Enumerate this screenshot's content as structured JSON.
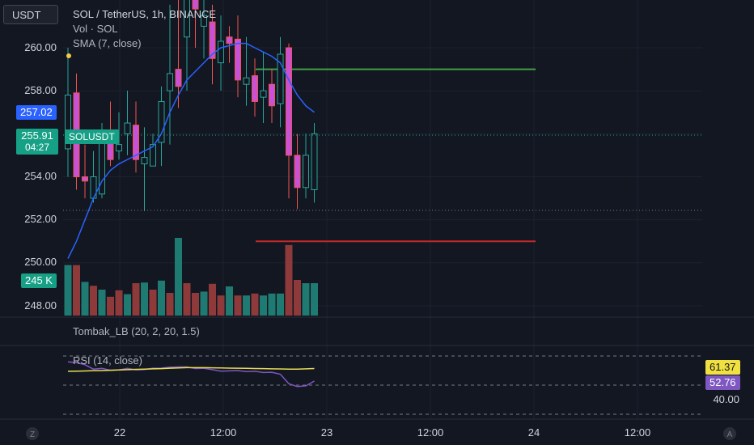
{
  "header": {
    "currency_button": "USDT",
    "symbol_line": "SOL / TetherUS, 1h, BINANCE",
    "volume_label": "Vol · SOL",
    "sma_label": "SMA (7, close)"
  },
  "price_axis": {
    "ticks": [
      "260.00",
      "258.00",
      "256.00",
      "254.00",
      "252.00",
      "250.00",
      "248.00"
    ],
    "highlight_price": "257.02",
    "current_price": "255.91",
    "countdown": "04:27",
    "symbol_tag": "SOLUSDT",
    "volume_tag": "245 K"
  },
  "indicators": {
    "tombak_label": "Tombak_LB (20, 2, 20, 1.5)",
    "rsi_label": "RSI (14, close)",
    "rsi_value_a": "61.37",
    "rsi_value_b": "52.76",
    "rsi_tick": "40.00"
  },
  "time_axis": {
    "labels": [
      "22",
      "12:00",
      "23",
      "12:00",
      "24",
      "12:00"
    ],
    "left_button": "Z",
    "right_button": "A"
  },
  "colors": {
    "background": "#131722",
    "up": "#26a69a",
    "down": "#ef5350",
    "candle_down_body": "#c951d6",
    "sma": "#2962ff",
    "rsi": "#7e57c2",
    "rsi_ma": "#e8dd54",
    "upper_line": "#43a047",
    "lower_line": "#c62828",
    "price_highlight": "#2962ff",
    "current_price_bg": "#16a085"
  },
  "chart_data": {
    "type": "candlestick",
    "candles": [
      {
        "o": 255.3,
        "h": 260.0,
        "l": 254.0,
        "c": 257.8
      },
      {
        "o": 257.9,
        "h": 258.8,
        "l": 253.4,
        "c": 254.0
      },
      {
        "o": 254.0,
        "h": 255.5,
        "l": 253.0,
        "c": 253.8
      },
      {
        "o": 253.0,
        "h": 255.2,
        "l": 252.8,
        "c": 254.0
      },
      {
        "o": 253.2,
        "h": 256.5,
        "l": 253.0,
        "c": 256.0
      },
      {
        "o": 255.7,
        "h": 257.5,
        "l": 254.5,
        "c": 254.8
      },
      {
        "o": 255.2,
        "h": 257.0,
        "l": 254.8,
        "c": 255.5
      },
      {
        "o": 256.0,
        "h": 258.0,
        "l": 255.0,
        "c": 256.5
      },
      {
        "o": 256.4,
        "h": 257.5,
        "l": 254.2,
        "c": 254.8
      },
      {
        "o": 254.6,
        "h": 256.3,
        "l": 252.4,
        "c": 254.9
      },
      {
        "o": 254.5,
        "h": 256.0,
        "l": 254.5,
        "c": 255.5
      },
      {
        "o": 255.6,
        "h": 258.2,
        "l": 254.5,
        "c": 257.5
      },
      {
        "o": 258.0,
        "h": 262.0,
        "l": 255.5,
        "c": 258.8
      },
      {
        "o": 259.0,
        "h": 262.5,
        "l": 257.2,
        "c": 258.2
      },
      {
        "o": 260.5,
        "h": 263.0,
        "l": 258.0,
        "c": 262.8
      },
      {
        "o": 262.5,
        "h": 263.0,
        "l": 260.0,
        "c": 261.8
      },
      {
        "o": 261.0,
        "h": 262.5,
        "l": 259.5,
        "c": 261.5
      },
      {
        "o": 261.2,
        "h": 262.0,
        "l": 258.3,
        "c": 259.5
      },
      {
        "o": 259.3,
        "h": 261.5,
        "l": 258.0,
        "c": 260.3
      },
      {
        "o": 260.5,
        "h": 261.0,
        "l": 259.3,
        "c": 260.2
      },
      {
        "o": 260.4,
        "h": 261.5,
        "l": 257.7,
        "c": 258.5
      },
      {
        "o": 258.3,
        "h": 260.5,
        "l": 257.3,
        "c": 258.6
      },
      {
        "o": 258.7,
        "h": 259.5,
        "l": 256.8,
        "c": 257.5
      },
      {
        "o": 257.7,
        "h": 259.8,
        "l": 256.5,
        "c": 258.0
      },
      {
        "o": 258.3,
        "h": 259.0,
        "l": 256.5,
        "c": 257.3
      },
      {
        "o": 257.4,
        "h": 260.5,
        "l": 256.3,
        "c": 259.7
      },
      {
        "o": 260.0,
        "h": 260.2,
        "l": 253.0,
        "c": 255.0
      },
      {
        "o": 255.0,
        "h": 256.0,
        "l": 252.5,
        "c": 253.5
      },
      {
        "o": 253.5,
        "h": 256.0,
        "l": 253.0,
        "c": 255.0
      },
      {
        "o": 253.4,
        "h": 256.5,
        "l": 252.8,
        "c": 256.0
      }
    ],
    "sma": [
      250.2,
      251.0,
      252.0,
      253.0,
      253.8,
      254.3,
      254.6,
      254.8,
      255.0,
      255.2,
      255.4,
      256.0,
      257.0,
      257.8,
      258.5,
      258.9,
      259.3,
      259.7,
      260.0,
      260.1,
      260.2,
      260.2,
      260.0,
      259.8,
      259.6,
      259.3,
      258.5,
      257.8,
      257.3,
      257.0
    ],
    "volume_up": [
      true,
      false,
      true,
      false,
      true,
      false,
      false,
      true,
      false,
      true,
      false,
      true,
      false,
      true,
      false,
      false,
      true,
      false,
      false,
      true,
      false,
      true,
      false,
      true,
      true,
      true,
      false,
      false,
      true,
      true
    ],
    "volume": [
      0.78,
      0.78,
      0.52,
      0.46,
      0.4,
      0.29,
      0.39,
      0.33,
      0.5,
      0.51,
      0.4,
      0.54,
      0.35,
      1.2,
      0.5,
      0.35,
      0.37,
      0.49,
      0.31,
      0.45,
      0.31,
      0.31,
      0.34,
      0.31,
      0.34,
      0.34,
      1.09,
      0.55,
      0.5,
      0.5
    ],
    "rsi": [
      66.0,
      65.5,
      64.0,
      61.0,
      61.5,
      60.2,
      60.4,
      61.5,
      60.5,
      60.7,
      61.6,
      61.7,
      62.3,
      62.5,
      62.5,
      61.4,
      61.6,
      60.6,
      59.6,
      59.8,
      60.0,
      59.3,
      59.5,
      58.7,
      58.8,
      57.5,
      51.0,
      49.0,
      49.5,
      52.76
    ],
    "rsi_ma": [
      59.5,
      59.6,
      59.7,
      59.9,
      60.0,
      60.2,
      60.4,
      60.6,
      60.8,
      61.0,
      61.2,
      61.3,
      61.6,
      61.8,
      62.0,
      62.0,
      62.0,
      61.9,
      61.8,
      61.7,
      61.6,
      61.5,
      61.4,
      61.3,
      61.2,
      61.1,
      61.0,
      61.0,
      61.2,
      61.37
    ],
    "upper_level": 259.0,
    "lower_level": 251.0
  }
}
